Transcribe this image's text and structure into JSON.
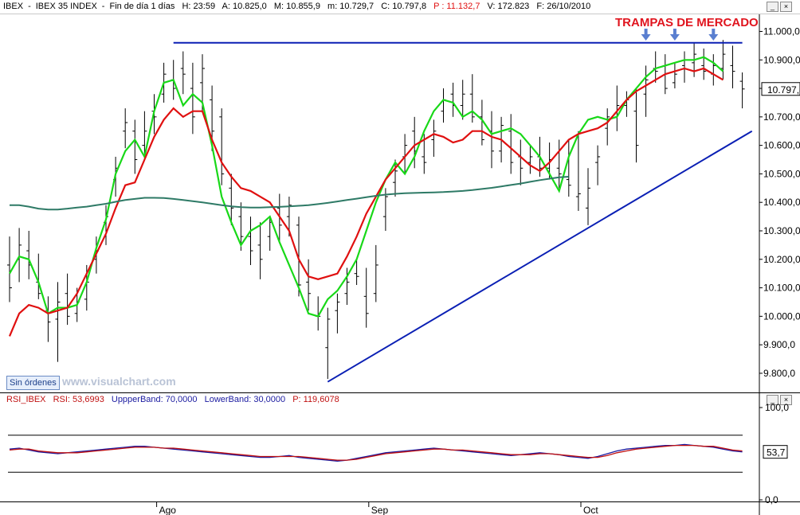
{
  "main_header": {
    "symbol": "IBEX",
    "name": "IBEX 35 INDEX",
    "period": "Fin de día 1 días",
    "H": "H: 23:59",
    "A": "A: 10.825,0",
    "M": "M: 10.855,9",
    "m": "m: 10.729,7",
    "C": "C: 10.797,8",
    "P": "P : 11.132,7",
    "V": "V: 172.823",
    "F": "F: 26/10/2010"
  },
  "rsi_header": {
    "label": "RSI_IBEX",
    "rsi": "RSI: 53,6993",
    "upper": "UppperBand: 70,0000",
    "lower": "LowerBand: 30,0000",
    "p": "P: 119,6078"
  },
  "window_buttons": {
    "min": "_",
    "close": "×"
  },
  "orders_button": "Sin órdenes",
  "watermark": "www.visualchart.com",
  "annotation": "TRAMPAS DE MERCADO",
  "colors": {
    "green_ma": "#18d818",
    "red_ma": "#e01010",
    "teal_ma": "#2e7a66",
    "trendline": "#0a1fb4",
    "rsi_line": "#1a1aa0",
    "rsi_signal": "#c01010",
    "bars": "#000000",
    "arrow": "#5a7fd0",
    "annotation": "#e0141e"
  },
  "chart_data": [
    {
      "type": "line",
      "title": "",
      "price_axis": {
        "min": 9730,
        "max": 11060,
        "ticks": [
          "11.000,0",
          "10.900,0",
          "10.800,0",
          "10.700,0",
          "10.600,0",
          "10.500,0",
          "10.400,0",
          "10.300,0",
          "10.200,0",
          "10.100,0",
          "10.000,0",
          "9.900,0",
          "9.800,0"
        ],
        "tick_values": [
          11000,
          10900,
          10800,
          10700,
          10600,
          10500,
          10400,
          10300,
          10200,
          10100,
          10000,
          9900,
          9800
        ],
        "current_label": "10.797,"
      },
      "x_labels": [
        "Ago",
        "Sep",
        "Oct"
      ],
      "x_label_index": [
        16,
        38,
        60
      ],
      "num_bars": 77,
      "grid": true,
      "series": [
        {
          "kind": "bars",
          "ohlc": [
            [
              10180,
              10280,
              10050,
              10100
            ],
            [
              10200,
              10310,
              10120,
              10250
            ],
            [
              10230,
              10300,
              10130,
              10180
            ],
            [
              10120,
              10220,
              10060,
              10080
            ],
            [
              10020,
              10070,
              9910,
              9980
            ],
            [
              9990,
              10120,
              9840,
              10050
            ],
            [
              10080,
              10150,
              9970,
              10000
            ],
            [
              10010,
              10100,
              9980,
              10050
            ],
            [
              10060,
              10180,
              10020,
              10120
            ],
            [
              10200,
              10280,
              10150,
              10230
            ],
            [
              10330,
              10390,
              10250,
              10350
            ],
            [
              10480,
              10560,
              10420,
              10520
            ],
            [
              10650,
              10730,
              10590,
              10680
            ],
            [
              10650,
              10690,
              10500,
              10550
            ],
            [
              10600,
              10720,
              10550,
              10650
            ],
            [
              10720,
              10780,
              10640,
              10700
            ],
            [
              10780,
              10890,
              10750,
              10850
            ],
            [
              10830,
              10900,
              10760,
              10800
            ],
            [
              10870,
              10930,
              10780,
              10850
            ],
            [
              10800,
              10890,
              10640,
              10700
            ],
            [
              10820,
              10920,
              10720,
              10870
            ],
            [
              10760,
              10810,
              10580,
              10650
            ],
            [
              10700,
              10730,
              10460,
              10500
            ],
            [
              10450,
              10500,
              10320,
              10380
            ],
            [
              10350,
              10400,
              10230,
              10280
            ],
            [
              10280,
              10350,
              10180,
              10230
            ],
            [
              10250,
              10330,
              10130,
              10200
            ],
            [
              10280,
              10350,
              10230,
              10330
            ],
            [
              10380,
              10430,
              10260,
              10320
            ],
            [
              10350,
              10420,
              10280,
              10390
            ],
            [
              10320,
              10350,
              10070,
              10110
            ],
            [
              10120,
              10200,
              10020,
              10080
            ],
            [
              10000,
              10070,
              9950,
              10000
            ],
            [
              9890,
              10030,
              9780,
              9990
            ],
            [
              10020,
              10080,
              9940,
              10050
            ],
            [
              10080,
              10170,
              10040,
              10120
            ],
            [
              10150,
              10200,
              10110,
              10140
            ],
            [
              10070,
              10170,
              9960,
              10010
            ],
            [
              10080,
              10250,
              10050,
              10180
            ],
            [
              10350,
              10450,
              10300,
              10420
            ],
            [
              10470,
              10550,
              10420,
              10510
            ],
            [
              10560,
              10640,
              10500,
              10600
            ],
            [
              10650,
              10700,
              10520,
              10580
            ],
            [
              10560,
              10640,
              10500,
              10540
            ],
            [
              10620,
              10690,
              10560,
              10650
            ],
            [
              10720,
              10800,
              10680,
              10760
            ],
            [
              10780,
              10820,
              10700,
              10740
            ],
            [
              10740,
              10830,
              10690,
              10780
            ],
            [
              10780,
              10850,
              10680,
              10700
            ],
            [
              10700,
              10760,
              10600,
              10620
            ],
            [
              10650,
              10720,
              10520,
              10580
            ],
            [
              10580,
              10700,
              10540,
              10670
            ],
            [
              10650,
              10710,
              10500,
              10540
            ],
            [
              10560,
              10620,
              10460,
              10520
            ],
            [
              10540,
              10600,
              10500,
              10560
            ],
            [
              10560,
              10630,
              10490,
              10520
            ],
            [
              10520,
              10610,
              10480,
              10550
            ],
            [
              10520,
              10620,
              10450,
              10500
            ],
            [
              10480,
              10620,
              10420,
              10460
            ],
            [
              10420,
              10650,
              10370,
              10430
            ],
            [
              10380,
              10520,
              10320,
              10450
            ],
            [
              10540,
              10600,
              10460,
              10560
            ],
            [
              10660,
              10730,
              10600,
              10700
            ],
            [
              10700,
              10810,
              10650,
              10740
            ],
            [
              10740,
              10790,
              10700,
              10760
            ],
            [
              10720,
              10800,
              10540,
              10600
            ],
            [
              10780,
              10880,
              10700,
              10830
            ],
            [
              10870,
              10930,
              10820,
              10860
            ],
            [
              10880,
              10920,
              10780,
              10800
            ],
            [
              10820,
              10890,
              10800,
              10850
            ],
            [
              10880,
              10930,
              10820,
              10900
            ],
            [
              10890,
              10960,
              10840,
              10920
            ],
            [
              10880,
              10940,
              10830,
              10860
            ],
            [
              10850,
              10920,
              10810,
              10880
            ],
            [
              10870,
              10970,
              10830,
              10920
            ],
            [
              10880,
              10950,
              10800,
              10860
            ],
            [
              10825,
              10856,
              10730,
              10798
            ]
          ]
        },
        {
          "kind": "line",
          "color_key": "green_ma",
          "values": [
            10150,
            10210,
            10200,
            10120,
            10010,
            10030,
            10030,
            10040,
            10120,
            10240,
            10340,
            10500,
            10580,
            10620,
            10560,
            10720,
            10820,
            10830,
            10740,
            10780,
            10750,
            10600,
            10420,
            10330,
            10250,
            10300,
            10320,
            10350,
            10260,
            10180,
            10100,
            10010,
            10000,
            10060,
            10090,
            10140,
            10200,
            10300,
            10400,
            10480,
            10540,
            10500,
            10560,
            10650,
            10720,
            10760,
            10750,
            10700,
            10720,
            10690,
            10640,
            10650,
            10660,
            10640,
            10600,
            10560,
            10500,
            10440,
            10560,
            10640,
            10690,
            10700,
            10690,
            10700,
            10760,
            10800,
            10840,
            10870,
            10880,
            10890,
            10900,
            10900,
            10910,
            10890,
            10860
          ]
        },
        {
          "kind": "line",
          "color_key": "red_ma",
          "values": [
            9930,
            10010,
            10040,
            10030,
            10010,
            10020,
            10030,
            10080,
            10150,
            10220,
            10290,
            10380,
            10460,
            10470,
            10550,
            10630,
            10690,
            10730,
            10700,
            10720,
            10720,
            10620,
            10540,
            10490,
            10450,
            10440,
            10420,
            10400,
            10350,
            10300,
            10200,
            10140,
            10130,
            10140,
            10150,
            10210,
            10280,
            10360,
            10420,
            10480,
            10520,
            10560,
            10600,
            10620,
            10640,
            10630,
            10610,
            10620,
            10650,
            10650,
            10630,
            10620,
            10590,
            10560,
            10530,
            10510,
            10540,
            10580,
            10620,
            10640,
            10650,
            10660,
            10680,
            10720,
            10760,
            10790,
            10810,
            10830,
            10850,
            10860,
            10870,
            10860,
            10870,
            10850,
            10830
          ]
        },
        {
          "kind": "line",
          "color_key": "teal_ma",
          "values": [
            10390,
            10390,
            10385,
            10378,
            10375,
            10375,
            10378,
            10382,
            10385,
            10390,
            10395,
            10402,
            10408,
            10412,
            10416,
            10416,
            10415,
            10412,
            10408,
            10404,
            10400,
            10395,
            10390,
            10386,
            10383,
            10382,
            10382,
            10383,
            10384,
            10386,
            10388,
            10390,
            10394,
            10398,
            10403,
            10408,
            10413,
            10418,
            10423,
            10427,
            10430,
            10432,
            10433,
            10434,
            10435,
            10436,
            10438,
            10440,
            10443,
            10447,
            10451,
            10456,
            10461,
            10466,
            10472,
            10478,
            10483,
            10488,
            10490
          ]
        },
        {
          "kind": "trendline",
          "color_key": "trendline",
          "label": "resistance",
          "points": [
            [
              17,
              10960
            ],
            [
              76,
              10960
            ]
          ]
        },
        {
          "kind": "trendline",
          "color_key": "trendline",
          "label": "support",
          "points": [
            [
              33,
              9770
            ],
            [
              77,
              10650
            ]
          ]
        }
      ],
      "arrows_at": [
        66,
        69,
        73
      ]
    },
    {
      "type": "line",
      "title": "",
      "axis": {
        "min": 0,
        "max": 100,
        "ticks": [
          "100,0",
          "0,0"
        ],
        "tick_values": [
          100,
          0
        ],
        "current_label": "53,7"
      },
      "bands": [
        70,
        30
      ],
      "series": [
        {
          "kind": "line",
          "color_key": "rsi_line",
          "values": [
            55,
            56,
            54,
            52,
            51,
            50,
            51,
            52,
            53,
            54,
            55,
            56,
            57,
            58,
            58,
            57,
            56,
            55,
            54,
            53,
            52,
            51,
            50,
            49,
            48,
            47,
            46,
            46,
            47,
            48,
            46,
            45,
            44,
            43,
            42,
            43,
            45,
            47,
            49,
            51,
            52,
            53,
            54,
            55,
            56,
            55,
            54,
            53,
            52,
            51,
            50,
            49,
            48,
            49,
            50,
            51,
            50,
            49,
            47,
            46,
            45,
            47,
            50,
            53,
            55,
            56,
            57,
            58,
            59,
            59,
            60,
            59,
            58,
            57,
            55,
            53,
            52
          ]
        },
        {
          "kind": "line",
          "color_key": "rsi_signal",
          "values": [
            54,
            55,
            55,
            53,
            52,
            51,
            51,
            51,
            52,
            53,
            54,
            55,
            56,
            57,
            57,
            57,
            56,
            56,
            55,
            54,
            53,
            52,
            51,
            50,
            49,
            48,
            47,
            47,
            47,
            47,
            47,
            46,
            45,
            44,
            43,
            43,
            44,
            46,
            48,
            50,
            51,
            52,
            53,
            54,
            55,
            55,
            54,
            54,
            53,
            52,
            51,
            50,
            49,
            49,
            49,
            50,
            50,
            49,
            48,
            47,
            46,
            46,
            48,
            51,
            53,
            55,
            56,
            57,
            58,
            59,
            59,
            59,
            58,
            58,
            56,
            54,
            53
          ]
        }
      ]
    }
  ]
}
